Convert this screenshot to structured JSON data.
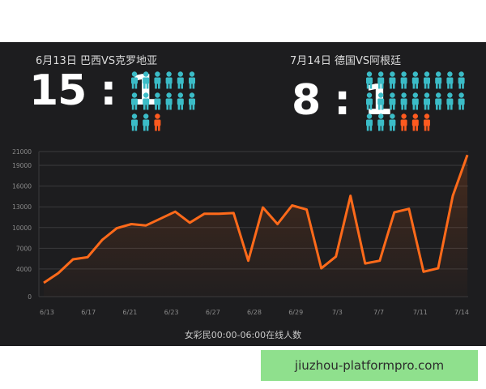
{
  "matches": [
    {
      "title": "6月13日 巴西VS克罗地亚",
      "score": "15 : 1",
      "people_teal": 14,
      "people_orange": 1
    },
    {
      "title": "7月14日 德国VS阿根廷",
      "score": "8 : 1",
      "people_teal": 21,
      "people_orange": 3
    }
  ],
  "colors": {
    "teal": "#3bbcc7",
    "orange": "#ff5a1f",
    "line": "#ff6a1a",
    "panel": "#1d1d1f"
  },
  "chart_data": {
    "type": "area",
    "xlabel": "女彩民00:00-06:00在线人数",
    "ylabel": "",
    "ylim": [
      0,
      21000
    ],
    "yticks": [
      0,
      4000,
      7000,
      10000,
      13000,
      16000,
      19000,
      21000
    ],
    "xtick_labels": [
      "6/13",
      "6/17",
      "6/21",
      "6/23",
      "6/27",
      "6/28",
      "6/29",
      "7/3",
      "7/7",
      "7/11",
      "7/14"
    ],
    "series": [
      {
        "values": [
          2000,
          3400,
          5400,
          5700,
          8200,
          9900,
          10500,
          10300,
          11300,
          12300,
          10700,
          12000,
          12000,
          12100,
          5200,
          12900,
          10500,
          13200,
          12600,
          4100,
          5800,
          14600,
          4800,
          5200,
          12200,
          12700,
          3600,
          4100,
          14600,
          20500
        ]
      }
    ]
  },
  "watermark": {
    "text": "jiuzhou-platformpro.com"
  }
}
